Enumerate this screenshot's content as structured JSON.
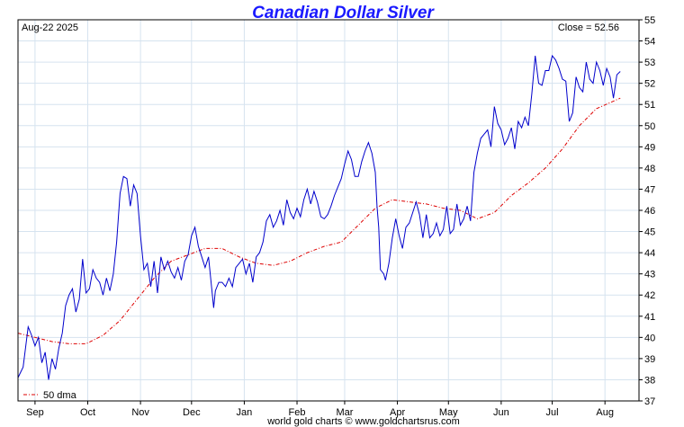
{
  "header": {
    "title": "Canadian Dollar Silver",
    "date_label": "Aug-22  2025",
    "close_label": "Close = 52.56"
  },
  "footer": {
    "credit": "world gold charts © www.goldchartsrus.com"
  },
  "legend": {
    "dma_label": "50 dma"
  },
  "colors": {
    "price": "#0000cc",
    "dma": "#dd0000",
    "title": "#1a1aff",
    "grid": "#d6e3ef",
    "frame": "#000000"
  },
  "chart_data": {
    "type": "line",
    "title": "Canadian Dollar Silver",
    "xlabel": "",
    "ylabel": "",
    "ylim": [
      37,
      55
    ],
    "grid": true,
    "legend_position": "bottom-left",
    "x_tick_labels": [
      "Sep",
      "Oct",
      "Nov",
      "Dec",
      "Jan",
      "Feb",
      "Mar",
      "Apr",
      "May",
      "Jun",
      "Jul",
      "Aug"
    ],
    "y_tick_labels": [
      "37",
      "38",
      "39",
      "40",
      "41",
      "42",
      "43",
      "44",
      "45",
      "46",
      "47",
      "48",
      "49",
      "50",
      "51",
      "52",
      "53",
      "54",
      "55"
    ],
    "x_domain_days": [
      0,
      365
    ],
    "x_ticks_day": [
      10,
      41,
      72,
      102,
      133,
      164,
      192,
      223,
      253,
      284,
      314,
      345
    ],
    "series": [
      {
        "name": "Canadian Dollar Silver",
        "points": [
          [
            0,
            38.1
          ],
          [
            3,
            38.6
          ],
          [
            6,
            40.5
          ],
          [
            8,
            40.1
          ],
          [
            10,
            39.6
          ],
          [
            12,
            40.0
          ],
          [
            14,
            38.8
          ],
          [
            16,
            39.3
          ],
          [
            18,
            38.0
          ],
          [
            20,
            39.0
          ],
          [
            22,
            38.5
          ],
          [
            24,
            39.5
          ],
          [
            26,
            40.2
          ],
          [
            28,
            41.5
          ],
          [
            30,
            42.0
          ],
          [
            32,
            42.3
          ],
          [
            34,
            41.2
          ],
          [
            36,
            41.8
          ],
          [
            38,
            43.7
          ],
          [
            40,
            42.1
          ],
          [
            42,
            42.3
          ],
          [
            44,
            43.2
          ],
          [
            46,
            42.8
          ],
          [
            48,
            42.6
          ],
          [
            50,
            42.0
          ],
          [
            52,
            42.8
          ],
          [
            54,
            42.2
          ],
          [
            56,
            43.0
          ],
          [
            58,
            44.5
          ],
          [
            60,
            46.8
          ],
          [
            62,
            47.6
          ],
          [
            64,
            47.5
          ],
          [
            66,
            46.2
          ],
          [
            68,
            47.2
          ],
          [
            70,
            46.8
          ],
          [
            72,
            44.8
          ],
          [
            74,
            43.2
          ],
          [
            76,
            43.5
          ],
          [
            78,
            42.4
          ],
          [
            80,
            43.6
          ],
          [
            82,
            42.1
          ],
          [
            84,
            43.8
          ],
          [
            86,
            43.2
          ],
          [
            88,
            43.6
          ],
          [
            90,
            43.1
          ],
          [
            92,
            42.8
          ],
          [
            94,
            43.3
          ],
          [
            96,
            42.7
          ],
          [
            98,
            43.6
          ],
          [
            100,
            43.9
          ],
          [
            102,
            44.8
          ],
          [
            104,
            45.2
          ],
          [
            106,
            44.3
          ],
          [
            108,
            43.8
          ],
          [
            110,
            43.3
          ],
          [
            112,
            43.8
          ],
          [
            114,
            42.2
          ],
          [
            115,
            41.4
          ],
          [
            116,
            42.2
          ],
          [
            118,
            42.6
          ],
          [
            120,
            42.6
          ],
          [
            122,
            42.4
          ],
          [
            124,
            42.8
          ],
          [
            126,
            42.4
          ],
          [
            128,
            43.3
          ],
          [
            130,
            43.5
          ],
          [
            132,
            43.7
          ],
          [
            134,
            43.0
          ],
          [
            136,
            43.5
          ],
          [
            138,
            42.6
          ],
          [
            140,
            43.8
          ],
          [
            142,
            44.0
          ],
          [
            144,
            44.5
          ],
          [
            146,
            45.5
          ],
          [
            148,
            45.8
          ],
          [
            150,
            45.2
          ],
          [
            152,
            45.5
          ],
          [
            154,
            46.0
          ],
          [
            156,
            45.3
          ],
          [
            158,
            46.5
          ],
          [
            160,
            45.9
          ],
          [
            162,
            45.6
          ],
          [
            164,
            46.1
          ],
          [
            166,
            45.7
          ],
          [
            168,
            46.5
          ],
          [
            170,
            47.0
          ],
          [
            172,
            46.3
          ],
          [
            174,
            46.9
          ],
          [
            176,
            46.4
          ],
          [
            178,
            45.7
          ],
          [
            180,
            45.6
          ],
          [
            182,
            45.8
          ],
          [
            184,
            46.2
          ],
          [
            186,
            46.7
          ],
          [
            188,
            47.1
          ],
          [
            190,
            47.5
          ],
          [
            192,
            48.2
          ],
          [
            194,
            48.8
          ],
          [
            196,
            48.4
          ],
          [
            198,
            47.6
          ],
          [
            200,
            47.6
          ],
          [
            202,
            48.3
          ],
          [
            204,
            48.8
          ],
          [
            206,
            49.2
          ],
          [
            208,
            48.7
          ],
          [
            210,
            47.8
          ],
          [
            211,
            46.2
          ],
          [
            212,
            45.2
          ],
          [
            213,
            43.2
          ],
          [
            215,
            43.0
          ],
          [
            216,
            42.7
          ],
          [
            218,
            43.5
          ],
          [
            220,
            44.7
          ],
          [
            222,
            45.6
          ],
          [
            224,
            44.8
          ],
          [
            226,
            44.2
          ],
          [
            228,
            45.2
          ],
          [
            230,
            45.4
          ],
          [
            232,
            45.9
          ],
          [
            234,
            46.4
          ],
          [
            236,
            45.8
          ],
          [
            238,
            44.7
          ],
          [
            240,
            45.8
          ],
          [
            242,
            44.7
          ],
          [
            244,
            44.9
          ],
          [
            246,
            45.4
          ],
          [
            248,
            44.8
          ],
          [
            250,
            45.1
          ],
          [
            252,
            46.2
          ],
          [
            254,
            44.9
          ],
          [
            256,
            45.1
          ],
          [
            258,
            46.3
          ],
          [
            260,
            45.3
          ],
          [
            262,
            45.6
          ],
          [
            264,
            46.2
          ],
          [
            266,
            45.5
          ],
          [
            268,
            47.8
          ],
          [
            270,
            48.7
          ],
          [
            272,
            49.4
          ],
          [
            274,
            49.6
          ],
          [
            276,
            49.8
          ],
          [
            278,
            49.0
          ],
          [
            280,
            50.9
          ],
          [
            282,
            50.1
          ],
          [
            284,
            49.8
          ],
          [
            286,
            49.1
          ],
          [
            288,
            49.4
          ],
          [
            290,
            49.9
          ],
          [
            292,
            48.9
          ],
          [
            294,
            50.2
          ],
          [
            296,
            49.9
          ],
          [
            298,
            50.4
          ],
          [
            300,
            50.0
          ],
          [
            302,
            51.5
          ],
          [
            304,
            53.3
          ],
          [
            306,
            52.0
          ],
          [
            308,
            51.9
          ],
          [
            310,
            52.6
          ],
          [
            312,
            52.6
          ],
          [
            314,
            53.3
          ],
          [
            316,
            53.1
          ],
          [
            318,
            52.7
          ],
          [
            320,
            52.2
          ],
          [
            322,
            52.1
          ],
          [
            324,
            50.2
          ],
          [
            326,
            50.6
          ],
          [
            328,
            52.3
          ],
          [
            330,
            51.8
          ],
          [
            332,
            51.6
          ],
          [
            334,
            53.0
          ],
          [
            336,
            52.2
          ],
          [
            338,
            52.0
          ],
          [
            340,
            53.0
          ],
          [
            342,
            52.6
          ],
          [
            344,
            51.9
          ],
          [
            346,
            52.7
          ],
          [
            348,
            52.3
          ],
          [
            350,
            51.3
          ],
          [
            352,
            52.4
          ],
          [
            354,
            52.56
          ]
        ]
      },
      {
        "name": "50 dma",
        "points": [
          [
            0,
            40.2
          ],
          [
            10,
            40.0
          ],
          [
            20,
            39.8
          ],
          [
            30,
            39.7
          ],
          [
            40,
            39.7
          ],
          [
            50,
            40.1
          ],
          [
            60,
            40.8
          ],
          [
            70,
            41.8
          ],
          [
            80,
            42.8
          ],
          [
            90,
            43.6
          ],
          [
            100,
            43.9
          ],
          [
            110,
            44.2
          ],
          [
            120,
            44.2
          ],
          [
            130,
            43.8
          ],
          [
            140,
            43.5
          ],
          [
            150,
            43.4
          ],
          [
            160,
            43.6
          ],
          [
            170,
            44.0
          ],
          [
            180,
            44.3
          ],
          [
            190,
            44.5
          ],
          [
            200,
            45.3
          ],
          [
            210,
            46.1
          ],
          [
            220,
            46.5
          ],
          [
            230,
            46.4
          ],
          [
            240,
            46.3
          ],
          [
            250,
            46.1
          ],
          [
            260,
            46.0
          ],
          [
            270,
            45.6
          ],
          [
            280,
            45.9
          ],
          [
            290,
            46.7
          ],
          [
            300,
            47.3
          ],
          [
            310,
            48.0
          ],
          [
            320,
            48.9
          ],
          [
            330,
            50.0
          ],
          [
            340,
            50.8
          ],
          [
            354,
            51.3
          ]
        ]
      }
    ]
  }
}
